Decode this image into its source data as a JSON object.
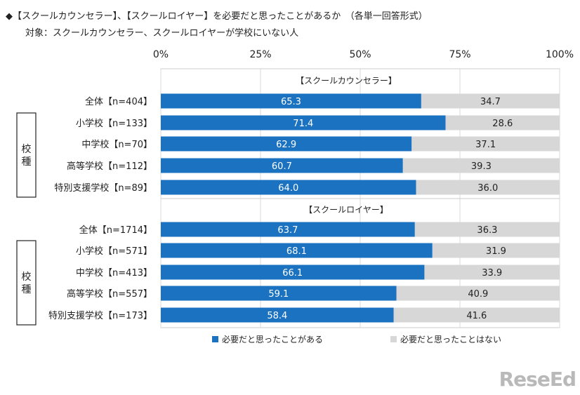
{
  "header": {
    "title": "◆【スクールカウンセラー】、【スクールロイヤー】を必要だと思ったことがあるか　（各単一回答形式）",
    "subtitle": "対象：スクールカウンセラー、スクールロイヤーが学校にいない人"
  },
  "watermark": "ReseEd",
  "chart_data": {
    "type": "bar",
    "orientation": "horizontal-stacked-100",
    "x_ticks": [
      "0%",
      "25%",
      "50%",
      "75%",
      "100%"
    ],
    "xlim": [
      0,
      100
    ],
    "colors": {
      "yes": "#1a72c0",
      "no": "#d7d7d7"
    },
    "legend": {
      "placement": "bottom",
      "items": [
        "必要だと思ったことがある",
        "必要だと思ったことはない"
      ]
    },
    "group_label": "校種",
    "sections": [
      {
        "name": "【スクールカウンセラー】",
        "rows": [
          {
            "label": "全体【n=404】",
            "yes": 65.3,
            "no": 34.7
          },
          {
            "label": "小学校【n=133】",
            "yes": 71.4,
            "no": 28.6
          },
          {
            "label": "中学校【n=70】",
            "yes": 62.9,
            "no": 37.1
          },
          {
            "label": "高等学校【n=112】",
            "yes": 60.7,
            "no": 39.3
          },
          {
            "label": "特別支援学校【n=89】",
            "yes": 64.0,
            "no": 36.0
          }
        ]
      },
      {
        "name": "【スクールロイヤー】",
        "rows": [
          {
            "label": "全体【n=1714】",
            "yes": 63.7,
            "no": 36.3
          },
          {
            "label": "小学校【n=571】",
            "yes": 68.1,
            "no": 31.9
          },
          {
            "label": "中学校【n=413】",
            "yes": 66.1,
            "no": 33.9
          },
          {
            "label": "高等学校【n=557】",
            "yes": 59.1,
            "no": 40.9
          },
          {
            "label": "特別支援学校【n=173】",
            "yes": 58.4,
            "no": 41.6
          }
        ]
      }
    ]
  }
}
